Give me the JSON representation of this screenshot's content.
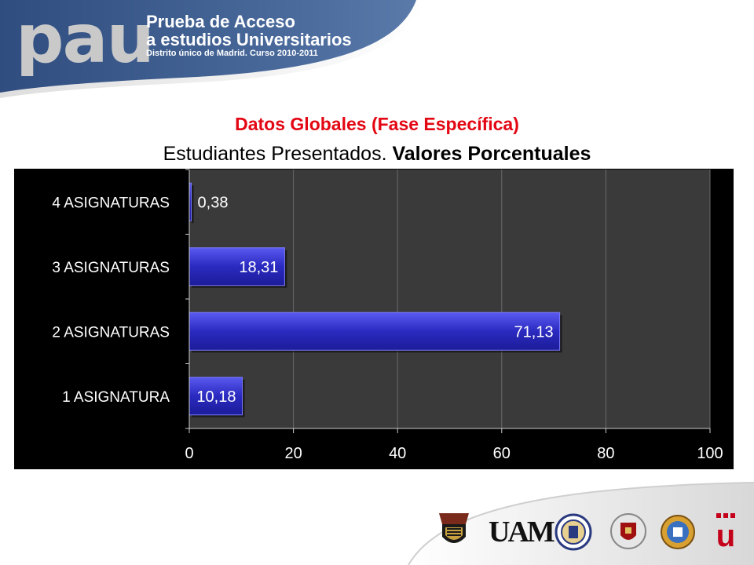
{
  "header": {
    "logo_text": "pau",
    "line1": "Prueba de Acceso",
    "line2": "a estudios Universitarios",
    "line3": "Distrito único de Madrid. Curso 2010-2011"
  },
  "title": "Datos Globales (Fase Específica)",
  "subtitle_regular": "Estudiantes Presentados. ",
  "subtitle_bold": "Valores Porcentuales",
  "colors": {
    "header_blue": "#3f5c8a",
    "title_red": "#e30613",
    "plot_bg": "#3a3a3a",
    "bar_blue": "#2b2bc8"
  },
  "footer": {
    "uam_text": "UAM",
    "u_text": "u",
    "logos": [
      "uah-crest-icon",
      "uam-logo-icon",
      "urjc-seal-icon",
      "ucm-crest-icon",
      "upm-crest-icon",
      "uc3m-logo-icon"
    ]
  },
  "chart_data": {
    "type": "bar",
    "orientation": "horizontal",
    "categories": [
      "1 ASIGNATURA",
      "2 ASIGNATURAS",
      "3 ASIGNATURAS",
      "4 ASIGNATURAS"
    ],
    "values": [
      10.18,
      71.13,
      18.31,
      0.38
    ],
    "value_labels": [
      "10,18",
      "71,13",
      "18,31",
      "0,38"
    ],
    "xlim": [
      0,
      100
    ],
    "xticks": [
      0,
      20,
      40,
      60,
      80,
      100
    ],
    "xtick_labels": [
      "0",
      "20",
      "40",
      "60",
      "80",
      "100"
    ],
    "grid": true,
    "legend": "none"
  }
}
